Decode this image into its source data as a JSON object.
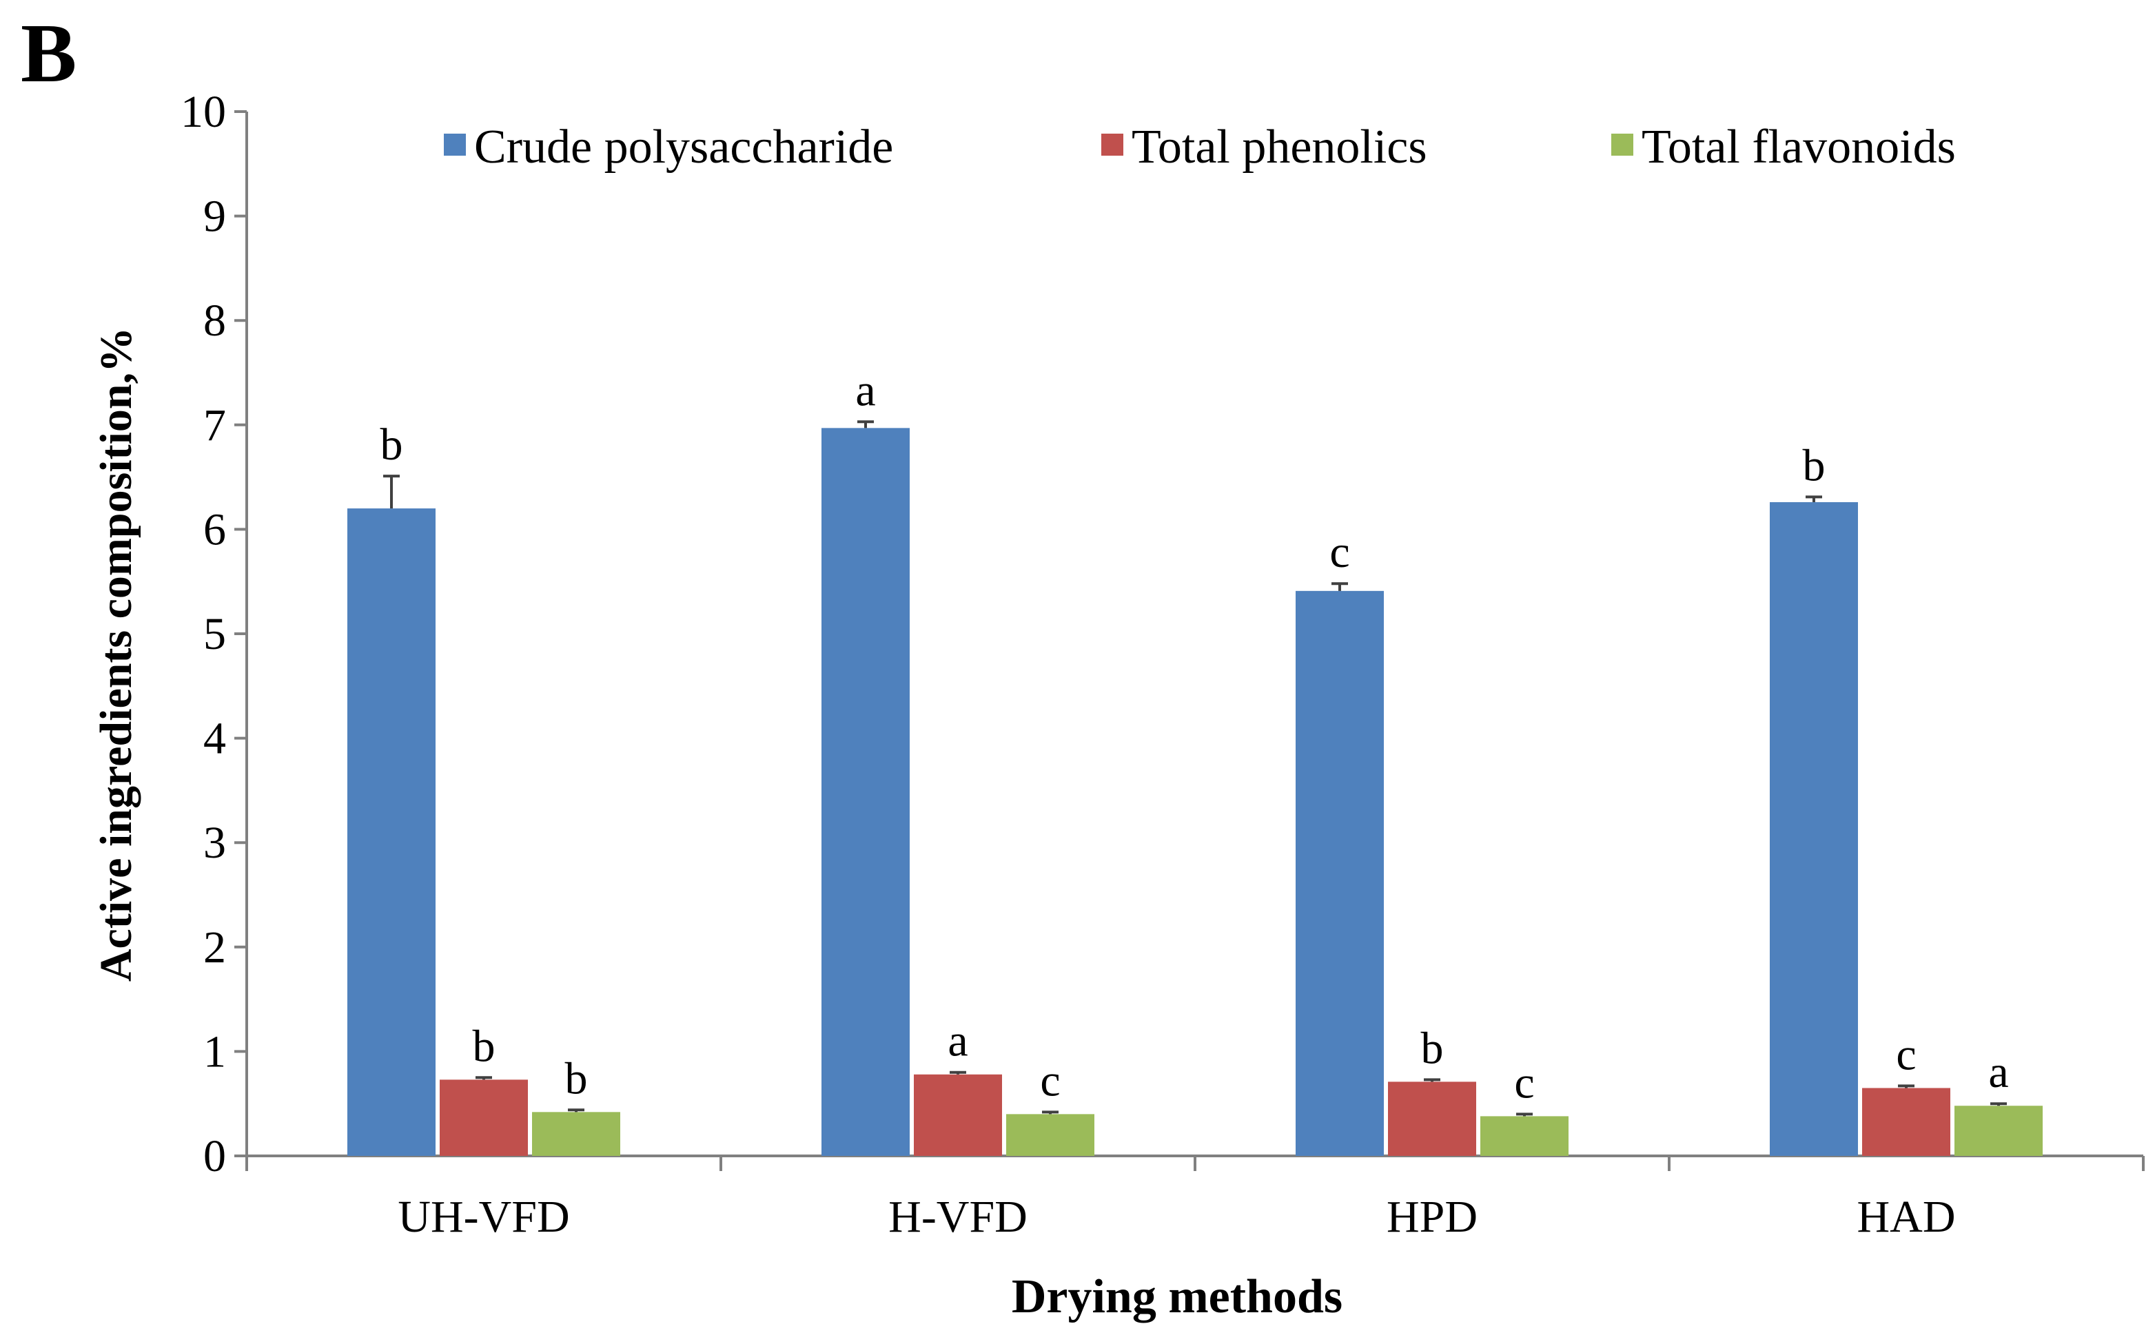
{
  "panel_label": "B",
  "chart_data": {
    "type": "bar",
    "title": "",
    "xlabel": "Drying methods",
    "ylabel": "Active ingredients composition,%",
    "ylim": [
      0,
      10
    ],
    "yticks": [
      0,
      1,
      2,
      3,
      4,
      5,
      6,
      7,
      8,
      9,
      10
    ],
    "ytick_labels": [
      "0",
      "1",
      "2",
      "3",
      "4",
      "5",
      "6",
      "7",
      "8",
      "9",
      "10"
    ],
    "grid": false,
    "legend_position": "top",
    "categories": [
      "UH-VFD",
      "H-VFD",
      "HPD",
      "HAD"
    ],
    "series": [
      {
        "name": "Crude polysaccharide",
        "color": "#4f81bd",
        "values": [
          6.2,
          6.97,
          5.41,
          6.26
        ],
        "errors": [
          0.31,
          0.06,
          0.07,
          0.05
        ],
        "letters": [
          "b",
          "a",
          "c",
          "b"
        ]
      },
      {
        "name": "Total phenolics",
        "color": "#c0504d",
        "values": [
          0.73,
          0.78,
          0.71,
          0.65
        ],
        "errors": [
          0.02,
          0.02,
          0.02,
          0.02
        ],
        "letters": [
          "b",
          "a",
          "b",
          "c"
        ]
      },
      {
        "name": "Total flavonoids",
        "color": "#9bbb59",
        "values": [
          0.42,
          0.4,
          0.38,
          0.48
        ],
        "errors": [
          0.02,
          0.02,
          0.02,
          0.02
        ],
        "letters": [
          "b",
          "c",
          "c",
          "a"
        ]
      }
    ]
  }
}
